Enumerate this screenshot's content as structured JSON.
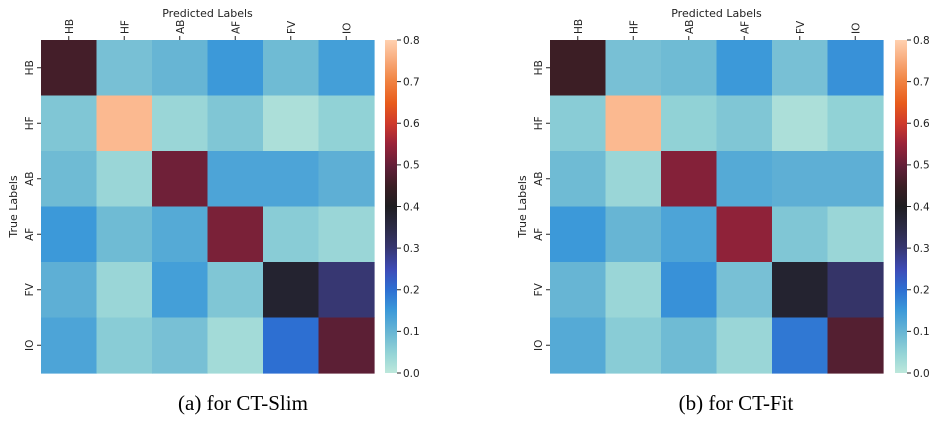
{
  "charts": [
    {
      "caption": "(a) for CT-Slim",
      "xlabel": "Predicted Labels",
      "ylabel": "True Labels"
    },
    {
      "caption": "(b) for CT-Fit",
      "xlabel": "Predicted Labels",
      "ylabel": "True Labels"
    }
  ],
  "chart_data": [
    {
      "type": "heatmap",
      "title": "",
      "xlabel": "Predicted Labels",
      "ylabel": "True Labels",
      "x_categories": [
        "HB",
        "HF",
        "AB",
        "AF",
        "FV",
        "IO"
      ],
      "y_categories": [
        "HB",
        "HF",
        "AB",
        "AF",
        "FV",
        "IO"
      ],
      "values": [
        [
          0.46,
          0.08,
          0.1,
          0.15,
          0.09,
          0.14
        ],
        [
          0.07,
          0.77,
          0.04,
          0.07,
          0.02,
          0.05
        ],
        [
          0.09,
          0.04,
          0.51,
          0.13,
          0.13,
          0.11
        ],
        [
          0.15,
          0.09,
          0.12,
          0.52,
          0.06,
          0.04
        ],
        [
          0.11,
          0.04,
          0.14,
          0.07,
          0.38,
          0.3
        ],
        [
          0.13,
          0.06,
          0.08,
          0.03,
          0.2,
          0.49
        ]
      ],
      "colorbar_ticks": [
        0.0,
        0.1,
        0.2,
        0.3,
        0.4,
        0.5,
        0.6,
        0.7,
        0.8
      ],
      "vmin": 0.0,
      "vmax": 0.8,
      "colormap": "icefire"
    },
    {
      "type": "heatmap",
      "title": "",
      "xlabel": "Predicted Labels",
      "ylabel": "True Labels",
      "x_categories": [
        "HB",
        "HF",
        "AB",
        "AF",
        "FV",
        "IO"
      ],
      "y_categories": [
        "HB",
        "HF",
        "AB",
        "AF",
        "FV",
        "IO"
      ],
      "values": [
        [
          0.45,
          0.08,
          0.09,
          0.15,
          0.08,
          0.16
        ],
        [
          0.06,
          0.77,
          0.05,
          0.07,
          0.02,
          0.05
        ],
        [
          0.09,
          0.04,
          0.53,
          0.12,
          0.11,
          0.11
        ],
        [
          0.15,
          0.1,
          0.13,
          0.54,
          0.07,
          0.04
        ],
        [
          0.1,
          0.04,
          0.16,
          0.08,
          0.38,
          0.31
        ],
        [
          0.12,
          0.06,
          0.09,
          0.04,
          0.19,
          0.48
        ]
      ],
      "colorbar_ticks": [
        0.0,
        0.1,
        0.2,
        0.3,
        0.4,
        0.5,
        0.6,
        0.7,
        0.8
      ],
      "vmin": 0.0,
      "vmax": 0.8,
      "colormap": "icefire"
    }
  ],
  "colormap_stops": [
    [
      0.0,
      "#bde7db"
    ],
    [
      0.06,
      "#93d3d6"
    ],
    [
      0.12,
      "#6ab7d4"
    ],
    [
      0.19,
      "#3a98d9"
    ],
    [
      0.25,
      "#2d6fd2"
    ],
    [
      0.31,
      "#3d4bb7"
    ],
    [
      0.38,
      "#36356d"
    ],
    [
      0.44,
      "#2b2a44"
    ],
    [
      0.5,
      "#1f1e21"
    ],
    [
      0.56,
      "#3a1e24"
    ],
    [
      0.62,
      "#611f38"
    ],
    [
      0.69,
      "#9b2339"
    ],
    [
      0.75,
      "#cf3a2b"
    ],
    [
      0.81,
      "#e85b1b"
    ],
    [
      0.88,
      "#f18544"
    ],
    [
      0.94,
      "#f8ab7c"
    ],
    [
      1.0,
      "#ffd1b0"
    ]
  ]
}
